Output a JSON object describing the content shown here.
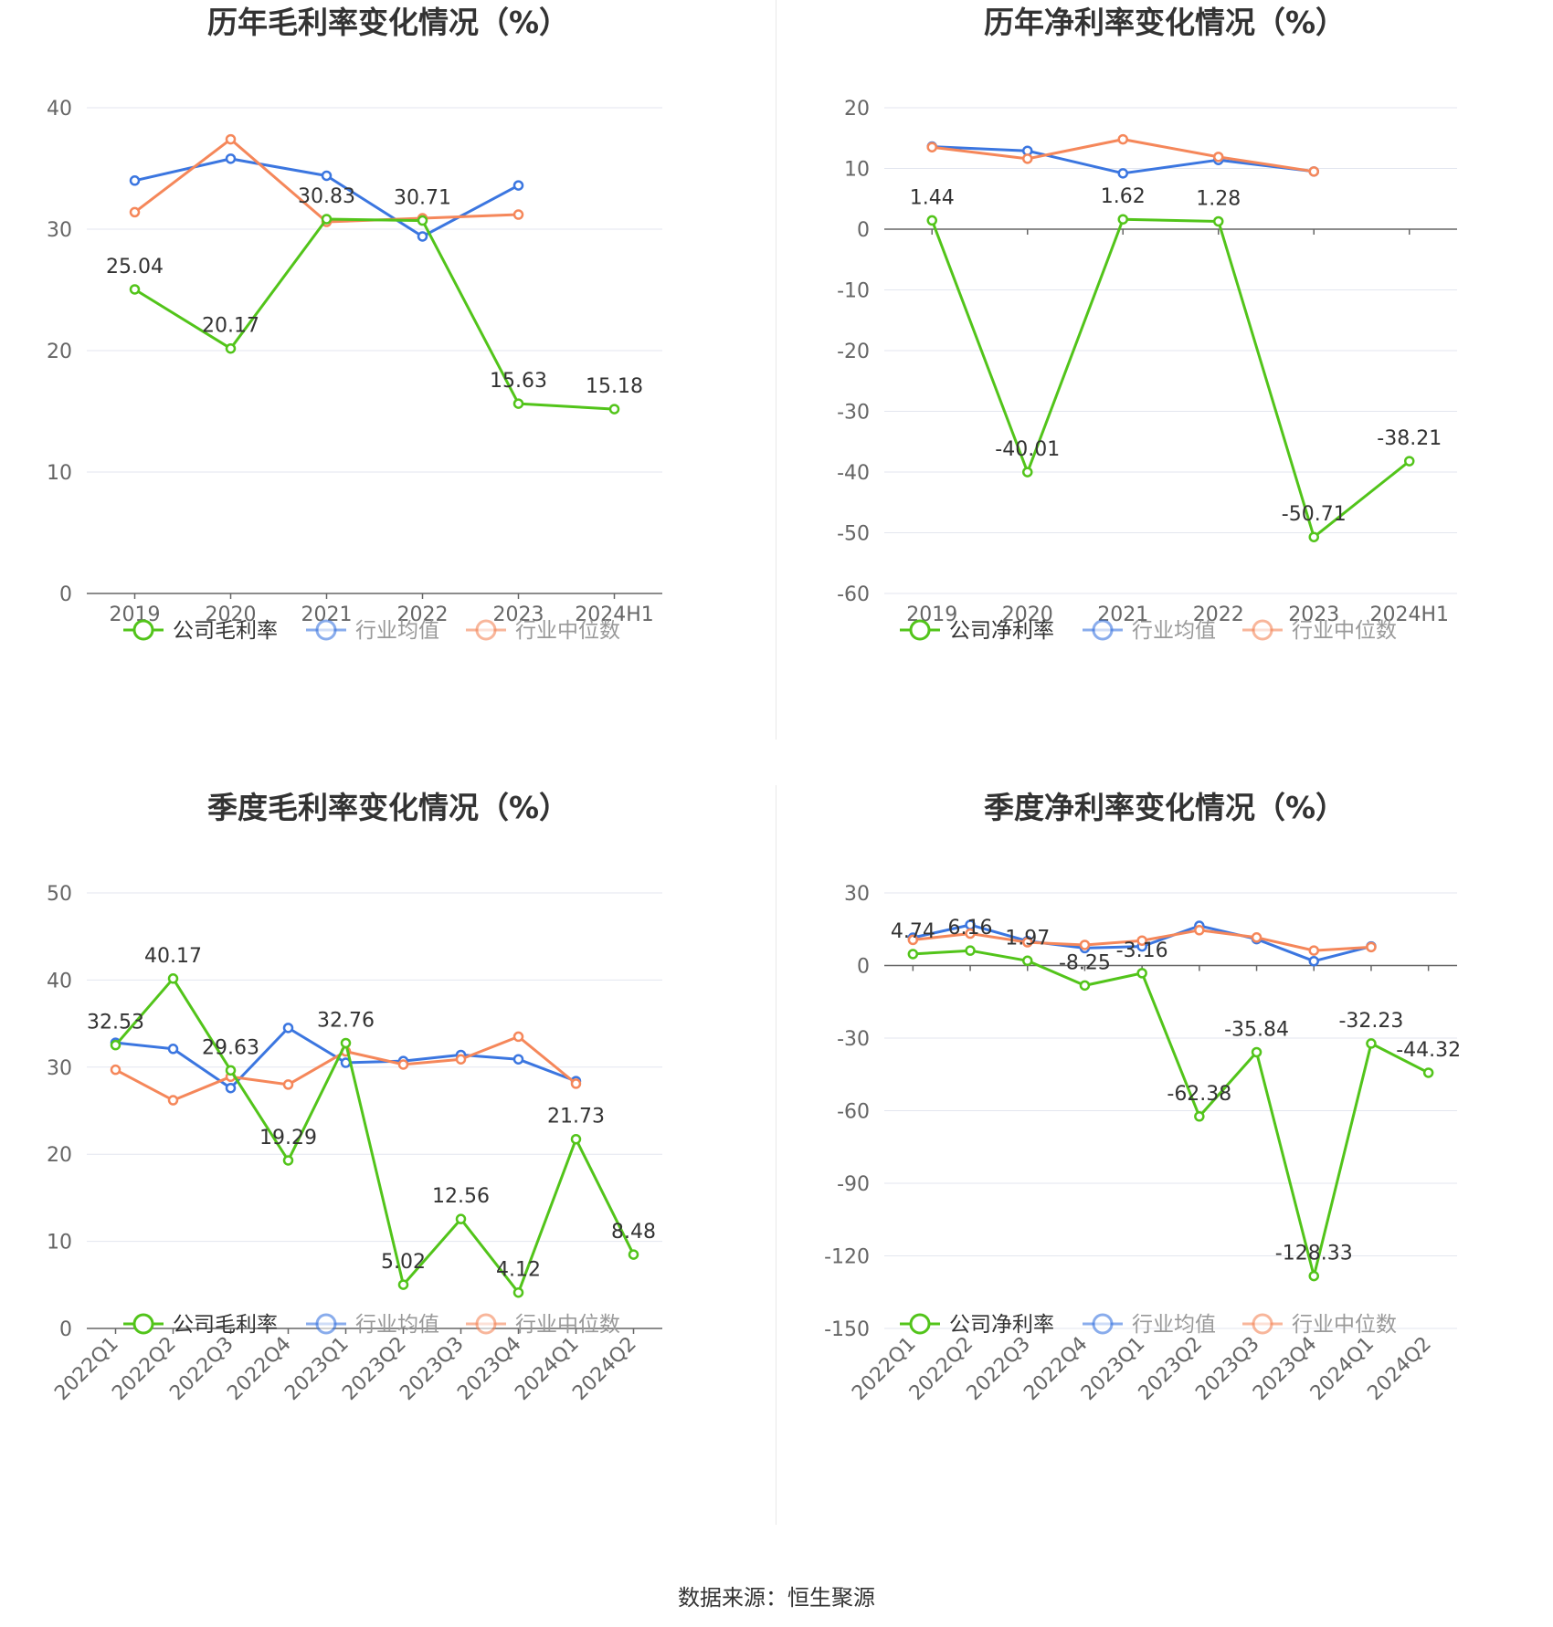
{
  "colors": {
    "company": "#52c41a",
    "avg": "#3b76e0",
    "median": "#f5875a",
    "grid": "#e3e6ef",
    "axis": "#666666"
  },
  "source": "数据来源：恒生聚源",
  "chart_data": [
    {
      "type": "line",
      "title": "历年毛利率变化情况（%）",
      "categories": [
        "2019",
        "2020",
        "2021",
        "2022",
        "2023",
        "2024H1"
      ],
      "ylim": [
        0,
        40
      ],
      "yticks": [
        0,
        10,
        20,
        30,
        40
      ],
      "grid": true,
      "legend": "bottom",
      "series": [
        {
          "name": "公司毛利率",
          "key": "company",
          "values": [
            25.04,
            20.17,
            30.83,
            30.71,
            15.63,
            15.18
          ],
          "labels": true
        },
        {
          "name": "行业均值",
          "key": "avg",
          "values": [
            34.0,
            35.8,
            34.4,
            29.4,
            33.6,
            null
          ]
        },
        {
          "name": "行业中位数",
          "key": "median",
          "values": [
            31.4,
            37.4,
            30.6,
            30.9,
            31.2,
            null
          ]
        }
      ]
    },
    {
      "type": "line",
      "title": "历年净利率变化情况（%）",
      "categories": [
        "2019",
        "2020",
        "2021",
        "2022",
        "2023",
        "2024H1"
      ],
      "ylim": [
        -60,
        20
      ],
      "yticks": [
        -60,
        -50,
        -40,
        -30,
        -20,
        -10,
        0,
        10,
        20
      ],
      "grid": true,
      "legend": "bottom",
      "series": [
        {
          "name": "公司净利率",
          "key": "company",
          "values": [
            1.44,
            -40.01,
            1.62,
            1.28,
            -50.71,
            -38.21
          ],
          "labels": true
        },
        {
          "name": "行业均值",
          "key": "avg",
          "values": [
            13.6,
            12.9,
            9.2,
            11.4,
            9.5,
            null
          ]
        },
        {
          "name": "行业中位数",
          "key": "median",
          "values": [
            13.5,
            11.6,
            14.8,
            11.9,
            9.5,
            null
          ]
        }
      ]
    },
    {
      "type": "line",
      "title": "季度毛利率变化情况（%）",
      "categories": [
        "2022Q1",
        "2022Q2",
        "2022Q3",
        "2022Q4",
        "2023Q1",
        "2023Q2",
        "2023Q3",
        "2023Q4",
        "2024Q1",
        "2024Q2"
      ],
      "ylim": [
        0,
        50
      ],
      "yticks": [
        0,
        10,
        20,
        30,
        40,
        50
      ],
      "grid": true,
      "legend": "bottom",
      "series": [
        {
          "name": "公司毛利率",
          "key": "company",
          "values": [
            32.53,
            40.17,
            29.63,
            19.29,
            32.76,
            5.02,
            12.56,
            4.12,
            21.73,
            8.48
          ],
          "labels": true
        },
        {
          "name": "行业均值",
          "key": "avg",
          "values": [
            32.8,
            32.1,
            27.6,
            34.5,
            30.5,
            30.7,
            31.4,
            30.9,
            28.4,
            null
          ]
        },
        {
          "name": "行业中位数",
          "key": "median",
          "values": [
            29.7,
            26.2,
            28.9,
            28.0,
            31.8,
            30.3,
            30.9,
            33.5,
            28.1,
            null
          ]
        }
      ]
    },
    {
      "type": "line",
      "title": "季度净利率变化情况（%）",
      "categories": [
        "2022Q1",
        "2022Q2",
        "2022Q3",
        "2022Q4",
        "2023Q1",
        "2023Q2",
        "2023Q3",
        "2023Q4",
        "2024Q1",
        "2024Q2"
      ],
      "ylim": [
        -150,
        30
      ],
      "yticks": [
        -150,
        -120,
        -90,
        -60,
        -30,
        0,
        30
      ],
      "grid": true,
      "legend": "bottom",
      "series": [
        {
          "name": "公司净利率",
          "key": "company",
          "values": [
            4.74,
            6.16,
            1.97,
            -8.25,
            -3.16,
            -62.38,
            -35.84,
            -128.33,
            -32.23,
            -44.32
          ],
          "labels": true
        },
        {
          "name": "行业均值",
          "key": "avg",
          "values": [
            11.5,
            16.8,
            10.1,
            7.2,
            7.9,
            16.4,
            10.9,
            1.8,
            7.9,
            null
          ]
        },
        {
          "name": "行业中位数",
          "key": "median",
          "values": [
            10.6,
            13.2,
            9.6,
            8.5,
            10.3,
            14.6,
            11.6,
            6.2,
            7.6,
            null
          ]
        }
      ]
    }
  ]
}
